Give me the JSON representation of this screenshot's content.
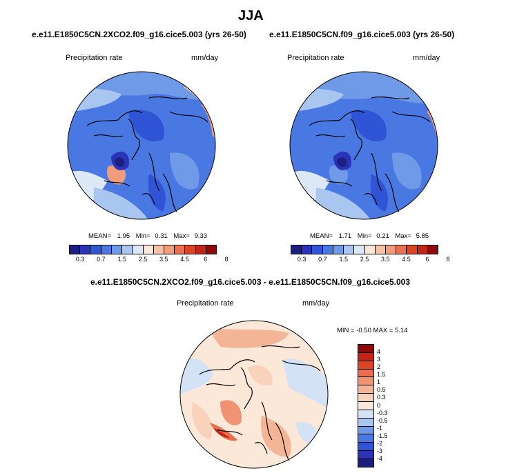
{
  "figure_title": "JJA",
  "colors": {
    "abs_scale": [
      "#1b1f80",
      "#2a34b8",
      "#2f55d6",
      "#4a78e3",
      "#6f9ae8",
      "#a9c6f0",
      "#dde8f7",
      "#fbe7d8",
      "#f6c3a7",
      "#f19d7c",
      "#ea7052",
      "#dd4325",
      "#c22417",
      "#8c0a0b"
    ],
    "diff_scale": [
      "#1b1f80",
      "#2a34b8",
      "#2f55d6",
      "#4a78e3",
      "#6f9ae8",
      "#a9c6f0",
      "#d4e2f6",
      "#fbe8d9",
      "#f8d2bb",
      "#f4b597",
      "#ef9372",
      "#e96d4e",
      "#db4525",
      "#c22417",
      "#8c0a0b"
    ]
  },
  "panels": [
    {
      "title": "e.e11.E1850C5CN.2XCO2.f09_g16.cice5.003 (yrs 26-50)",
      "left_label": "Precipitation rate",
      "right_label": "mm/day",
      "mean_label": "MEAN=",
      "mean_value": "1.95",
      "min_label": "Min=",
      "min_value": "0.31",
      "max_label": "Max=",
      "max_value": "9.33",
      "ticks": [
        "0.3",
        "0.7",
        "1.5",
        "2.5",
        "3.5",
        "4.5",
        "6",
        "8"
      ]
    },
    {
      "title": "e.e11.E1850C5CN.f09_g16.cice5.003 (yrs 26-50)",
      "left_label": "Precipitation rate",
      "right_label": "mm/day",
      "mean_label": "MEAN=",
      "mean_value": "1.71",
      "min_label": "Min=",
      "min_value": "0.21",
      "max_label": "Max=",
      "max_value": "5.85",
      "ticks": [
        "0.3",
        "0.7",
        "1.5",
        "2.5",
        "3.5",
        "4.5",
        "6",
        "8"
      ]
    }
  ],
  "diff_panel": {
    "title": "e.e11.E1850C5CN.2XCO2.f09_g16.cice5.003 - e.e11.E1850C5CN.f09_g16.cice5.003",
    "left_label": "Precipitation rate",
    "right_label": "mm/day",
    "minmax_text": "MIN =  -0.50 MAX =   5.14",
    "ticks": [
      "4",
      "3",
      "2",
      "1.5",
      "1",
      "0.5",
      "0.3",
      "0",
      "-0.3",
      "-0.5",
      "-1",
      "-1.5",
      "-2",
      "-3",
      "-4"
    ]
  }
}
